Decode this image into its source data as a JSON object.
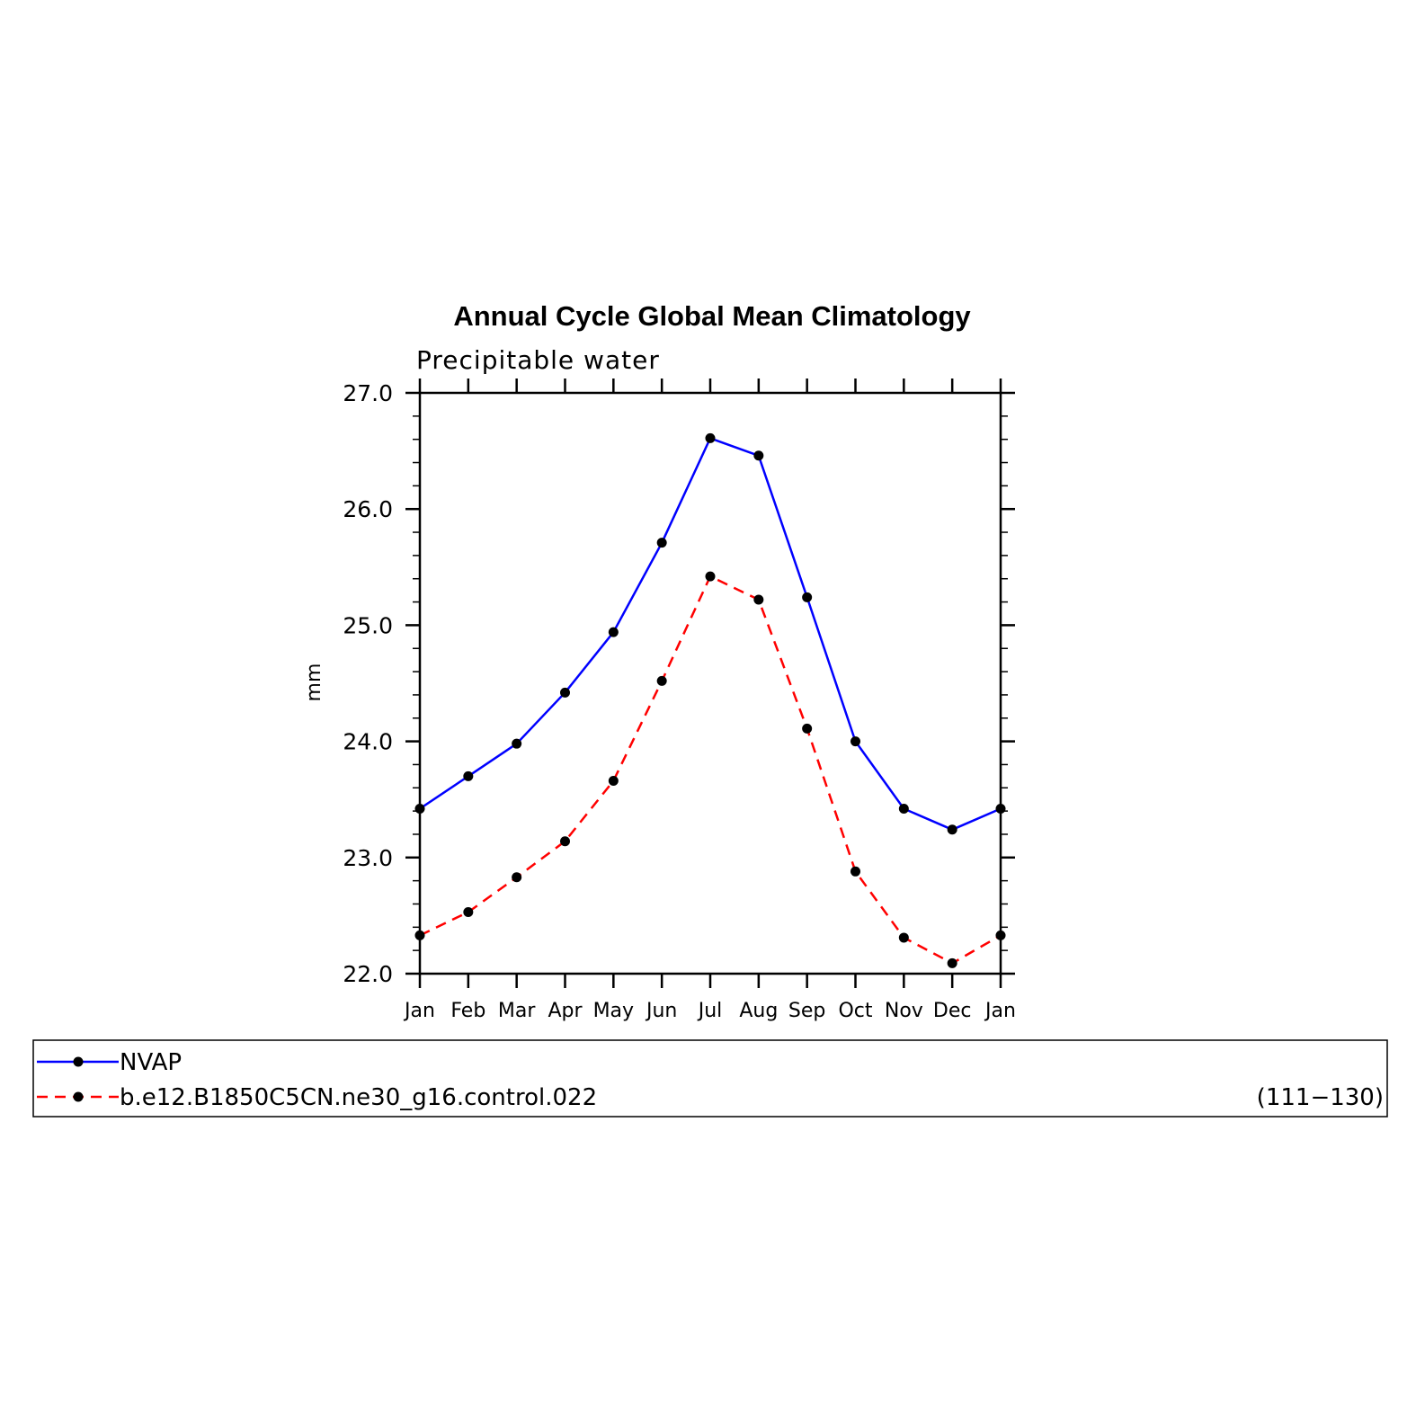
{
  "chart_data": {
    "type": "line",
    "title": "Annual Cycle Global Mean Climatology",
    "subtitle": "Precipitable water",
    "xlabel": "",
    "ylabel": "mm",
    "ylim": [
      22.0,
      27.0
    ],
    "yticks": [
      "22.0",
      "23.0",
      "24.0",
      "25.0",
      "26.0",
      "27.0"
    ],
    "categories": [
      "Jan",
      "Feb",
      "Mar",
      "Apr",
      "May",
      "Jun",
      "Jul",
      "Aug",
      "Sep",
      "Oct",
      "Nov",
      "Dec",
      "Jan"
    ],
    "series": [
      {
        "name": "NVAP",
        "color": "#0000ff",
        "style": "solid",
        "values": [
          23.42,
          23.7,
          23.98,
          24.42,
          24.94,
          25.71,
          26.61,
          26.46,
          25.24,
          24.0,
          23.42,
          23.24,
          23.42
        ]
      },
      {
        "name": "b.e12.B1850C5CN.ne30_g16.control.022",
        "years": "(111−130)",
        "color": "#ff0000",
        "style": "dashed",
        "values": [
          22.33,
          22.53,
          22.83,
          23.14,
          23.66,
          24.52,
          25.42,
          25.22,
          24.11,
          22.88,
          22.31,
          22.09,
          22.33
        ]
      }
    ],
    "grid": false,
    "legend_position": "bottom"
  }
}
